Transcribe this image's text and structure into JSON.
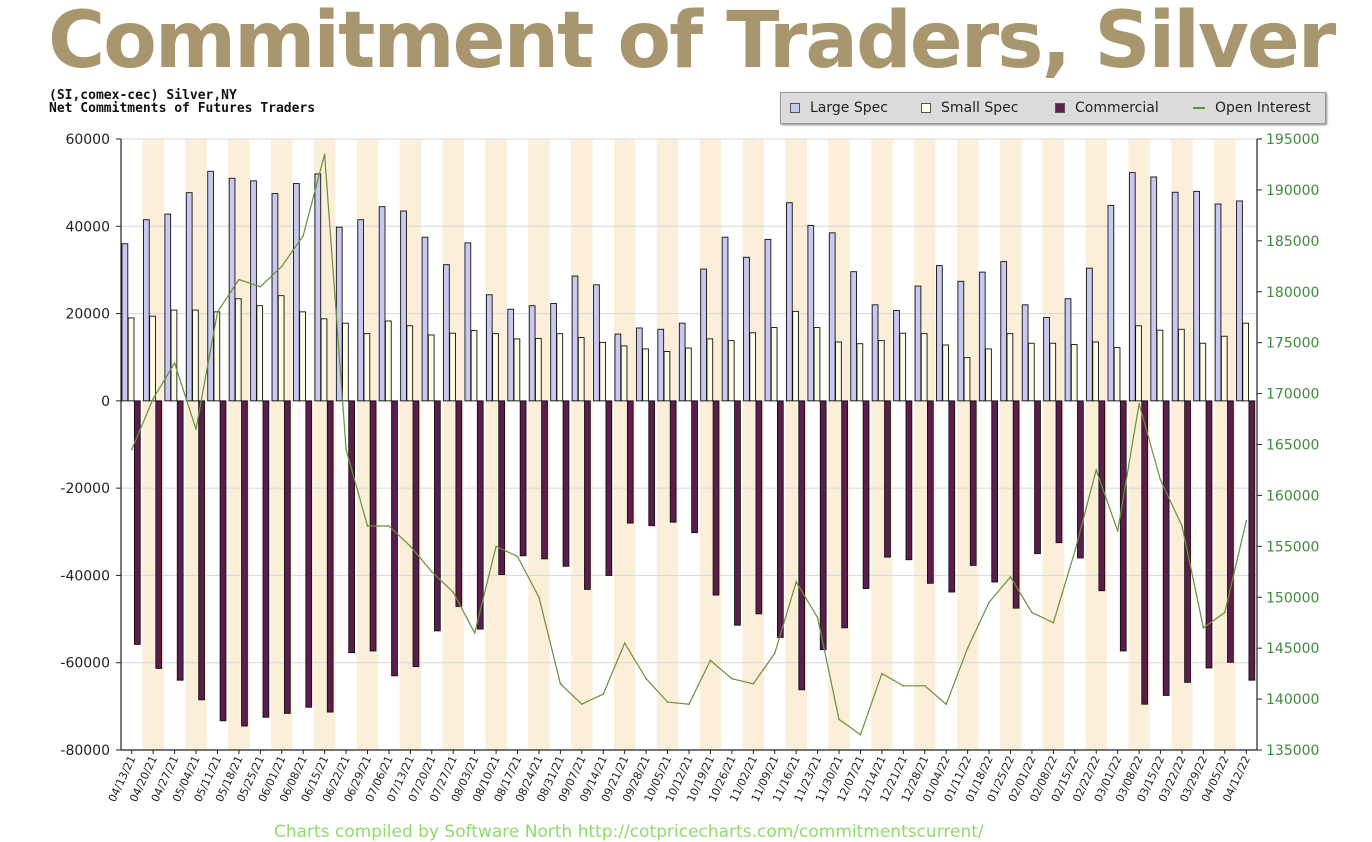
{
  "page": {
    "title": "Commitment of Traders, Silver",
    "subtitle1": "(SI,comex-cec) Silver,NY",
    "subtitle2": "Net Commitments of Futures Traders",
    "footer": "Charts compiled by Software North  http://cotpricecharts.com/commitmentscurrent/"
  },
  "legend": {
    "large_spec": "Large Spec",
    "small_spec": "Small Spec",
    "commercial": "Commercial",
    "open_interest": "Open Interest"
  },
  "colors": {
    "title": "#a8976e",
    "large_spec": "#c8c8f0",
    "small_spec": "#fdfde6",
    "commercial": "#5c1c4c",
    "open_interest": "#6a8f3a",
    "band": "#fbefd9",
    "right_axis": "#3f8a3f"
  },
  "chart_data": {
    "type": "bar",
    "title": "Commitment of Traders, Silver",
    "xlabel": "",
    "ylabel": "",
    "ylim": [
      -80000,
      60000
    ],
    "y2lim": [
      135000,
      195000
    ],
    "yticks": [
      60000,
      40000,
      20000,
      0,
      -20000,
      -40000,
      -60000,
      -80000
    ],
    "y2ticks": [
      195000,
      190000,
      185000,
      180000,
      175000,
      170000,
      165000,
      160000,
      155000,
      150000,
      145000,
      140000,
      135000
    ],
    "categories": [
      "04/13/21",
      "04/20/21",
      "04/27/21",
      "05/04/21",
      "05/11/21",
      "05/18/21",
      "05/25/21",
      "06/01/21",
      "06/08/21",
      "06/15/21",
      "06/22/21",
      "06/29/21",
      "07/06/21",
      "07/13/21",
      "07/20/21",
      "07/27/21",
      "08/03/21",
      "08/10/21",
      "08/17/21",
      "08/24/21",
      "08/31/21",
      "09/07/21",
      "09/14/21",
      "09/21/21",
      "09/28/21",
      "10/05/21",
      "10/12/21",
      "10/19/21",
      "10/26/21",
      "11/02/21",
      "11/09/21",
      "11/16/21",
      "11/23/21",
      "11/30/21",
      "12/07/21",
      "12/14/21",
      "12/21/21",
      "12/28/21",
      "01/04/22",
      "01/11/22",
      "01/18/22",
      "01/25/22",
      "02/01/22",
      "02/08/22",
      "02/15/22",
      "02/22/22",
      "03/01/22",
      "03/08/22",
      "03/15/22",
      "03/22/22",
      "03/29/22",
      "04/05/22",
      "04/12/22"
    ],
    "series": [
      {
        "name": "Large Spec",
        "axis": "left",
        "values": [
          36000,
          41500,
          42800,
          47700,
          52600,
          51000,
          50400,
          47500,
          49800,
          52000,
          39800,
          41500,
          44500,
          43500,
          37500,
          31200,
          36200,
          24300,
          21000,
          21800,
          22300,
          28600,
          26600,
          15300,
          16700,
          16400,
          17800,
          30200,
          37500,
          32900,
          37000,
          45400,
          40200,
          38500,
          29600,
          22000,
          20700,
          26300,
          31000,
          27400,
          29500,
          31900,
          22000,
          19100,
          23400,
          30400,
          44800,
          52300,
          51300,
          47800,
          48000,
          45100,
          45800
        ]
      },
      {
        "name": "Small Spec",
        "axis": "left",
        "values": [
          19000,
          19400,
          20800,
          20800,
          20400,
          23400,
          21800,
          24100,
          20400,
          18800,
          17800,
          15400,
          18300,
          17200,
          15100,
          15500,
          16100,
          15400,
          14200,
          14300,
          15400,
          14500,
          13400,
          12600,
          11900,
          11300,
          12100,
          14200,
          13800,
          15600,
          16800,
          20500,
          16800,
          13500,
          13100,
          13800,
          15500,
          15400,
          12800,
          9900,
          11900,
          15400,
          13200,
          13200,
          12900,
          13500,
          12200,
          17200,
          16200,
          16400,
          13200,
          14800,
          17800
        ]
      },
      {
        "name": "Commercial",
        "axis": "left",
        "values": [
          -55800,
          -61300,
          -64000,
          -68500,
          -73300,
          -74500,
          -72500,
          -71600,
          -70200,
          -71300,
          -57700,
          -57300,
          -63000,
          -60900,
          -52700,
          -47100,
          -52300,
          -39800,
          -35500,
          -36200,
          -37900,
          -43200,
          -40000,
          -28000,
          -28600,
          -27800,
          -30200,
          -44500,
          -51400,
          -48800,
          -54200,
          -66200,
          -57000,
          -52000,
          -43000,
          -35800,
          -36400,
          -41800,
          -43800,
          -37700,
          -41500,
          -47500,
          -35000,
          -32500,
          -36000,
          -43500,
          -57300,
          -69500,
          -67500,
          -64500,
          -61200,
          -59900,
          -64000
        ]
      },
      {
        "name": "Open Interest",
        "axis": "right",
        "values": [
          164500,
          169500,
          173000,
          166500,
          178000,
          181200,
          180500,
          182500,
          185500,
          193500,
          164500,
          157000,
          157000,
          155000,
          152500,
          150500,
          146500,
          155000,
          154000,
          150000,
          141500,
          139500,
          140500,
          145500,
          142000,
          139700,
          139500,
          143800,
          142000,
          141500,
          144500,
          151500,
          148000,
          138000,
          136500,
          142500,
          141300,
          141300,
          139500,
          145000,
          149500,
          152000,
          148500,
          147500,
          154500,
          162500,
          156500,
          169000,
          161500,
          157000,
          147000,
          148500,
          157500
        ]
      }
    ]
  }
}
